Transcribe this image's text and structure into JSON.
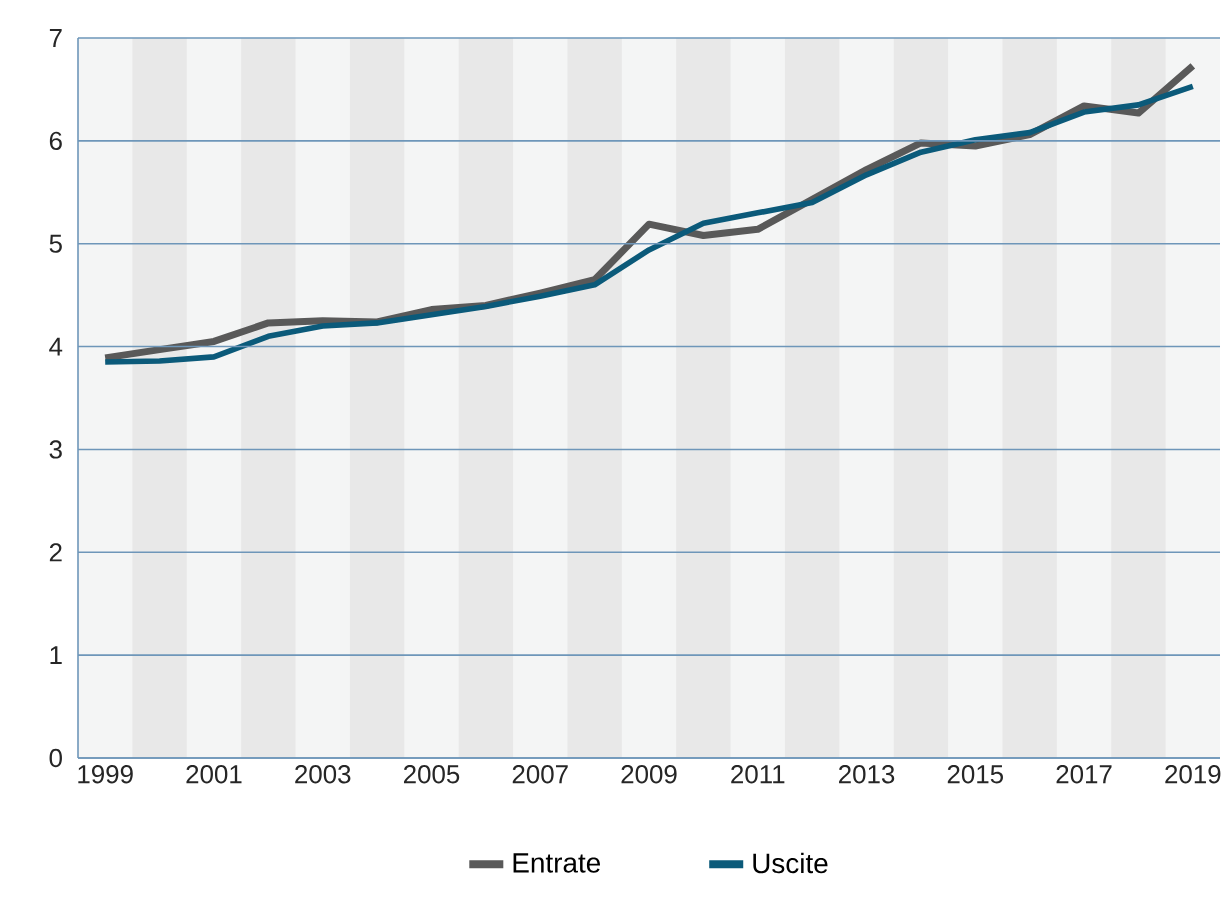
{
  "chart_data": {
    "type": "line",
    "x": [
      1999,
      2000,
      2001,
      2002,
      2003,
      2004,
      2005,
      2006,
      2007,
      2008,
      2009,
      2010,
      2011,
      2012,
      2013,
      2014,
      2015,
      2016,
      2017,
      2018,
      2019
    ],
    "series": [
      {
        "name": "Entrate",
        "color": "#595959",
        "values": [
          3.89,
          3.97,
          4.05,
          4.23,
          4.25,
          4.24,
          4.36,
          4.4,
          4.52,
          4.65,
          5.19,
          5.08,
          5.14,
          5.43,
          5.72,
          5.98,
          5.95,
          6.06,
          6.34,
          6.27,
          6.73
        ]
      },
      {
        "name": "Uscite",
        "color": "#0b5a7a",
        "values": [
          3.85,
          3.86,
          3.9,
          4.1,
          4.2,
          4.23,
          4.31,
          4.39,
          4.49,
          4.6,
          4.94,
          5.2,
          5.3,
          5.4,
          5.67,
          5.89,
          6.01,
          6.08,
          6.28,
          6.35,
          6.53
        ]
      }
    ],
    "xlim": [
      1998.5,
      2019.5
    ],
    "xticks": [
      1999,
      2001,
      2003,
      2005,
      2007,
      2009,
      2011,
      2013,
      2015,
      2017,
      2019
    ],
    "ylim": [
      0,
      7
    ],
    "yticks": [
      0,
      1,
      2,
      3,
      4,
      5,
      6,
      7
    ],
    "bands": [
      {
        "axis": "x",
        "from": 1999.5,
        "to": 2000.5,
        "color": "#e8e8e8"
      },
      {
        "axis": "x",
        "from": 2001.5,
        "to": 2002.5,
        "color": "#e8e8e8"
      },
      {
        "axis": "x",
        "from": 2003.5,
        "to": 2004.5,
        "color": "#e8e8e8"
      },
      {
        "axis": "x",
        "from": 2005.5,
        "to": 2006.5,
        "color": "#e8e8e8"
      },
      {
        "axis": "x",
        "from": 2007.5,
        "to": 2008.5,
        "color": "#e8e8e8"
      },
      {
        "axis": "x",
        "from": 2009.5,
        "to": 2010.5,
        "color": "#e8e8e8"
      },
      {
        "axis": "x",
        "from": 2011.5,
        "to": 2012.5,
        "color": "#e8e8e8"
      },
      {
        "axis": "x",
        "from": 2013.5,
        "to": 2014.5,
        "color": "#e8e8e8"
      },
      {
        "axis": "x",
        "from": 2015.5,
        "to": 2016.5,
        "color": "#e8e8e8"
      },
      {
        "axis": "x",
        "from": 2017.5,
        "to": 2018.5,
        "color": "#e8e8e8"
      }
    ],
    "grid": "y",
    "legend": "bottom",
    "marker": "none",
    "line_style": "solid"
  }
}
